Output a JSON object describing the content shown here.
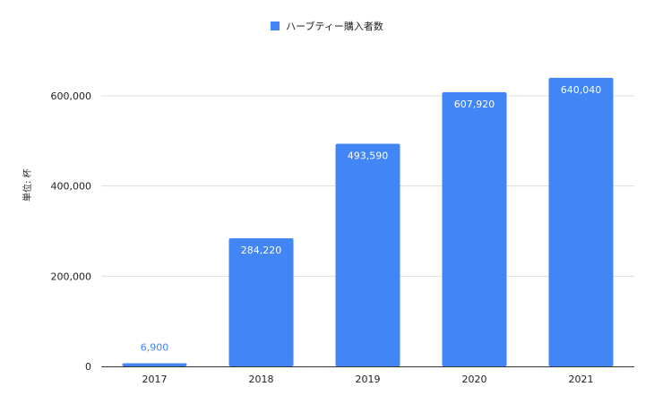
{
  "chart_data": {
    "type": "bar",
    "title": "",
    "categories": [
      "2017",
      "2018",
      "2019",
      "2020",
      "2021"
    ],
    "series": [
      {
        "name": "ハーブティー購入者数",
        "values": [
          6900,
          284220,
          493590,
          607920,
          640040
        ]
      }
    ],
    "data_labels": [
      "6,900",
      "284,220",
      "493,590",
      "607,920",
      "640,040"
    ],
    "xlabel": "",
    "ylabel": "単位: 杯",
    "ylim": [
      0,
      600000
    ],
    "yticks": [
      0,
      200000,
      400000,
      600000
    ],
    "ytick_labels": [
      "0",
      "200,000",
      "400,000",
      "600,000"
    ],
    "grid": true,
    "legend_position": "top-center",
    "bar_color": "#4285f4",
    "label_color_inside": "#ffffff",
    "label_color_outside": "#4285f4",
    "gridline_color": "#dddddd",
    "axis_color": "#333333"
  }
}
